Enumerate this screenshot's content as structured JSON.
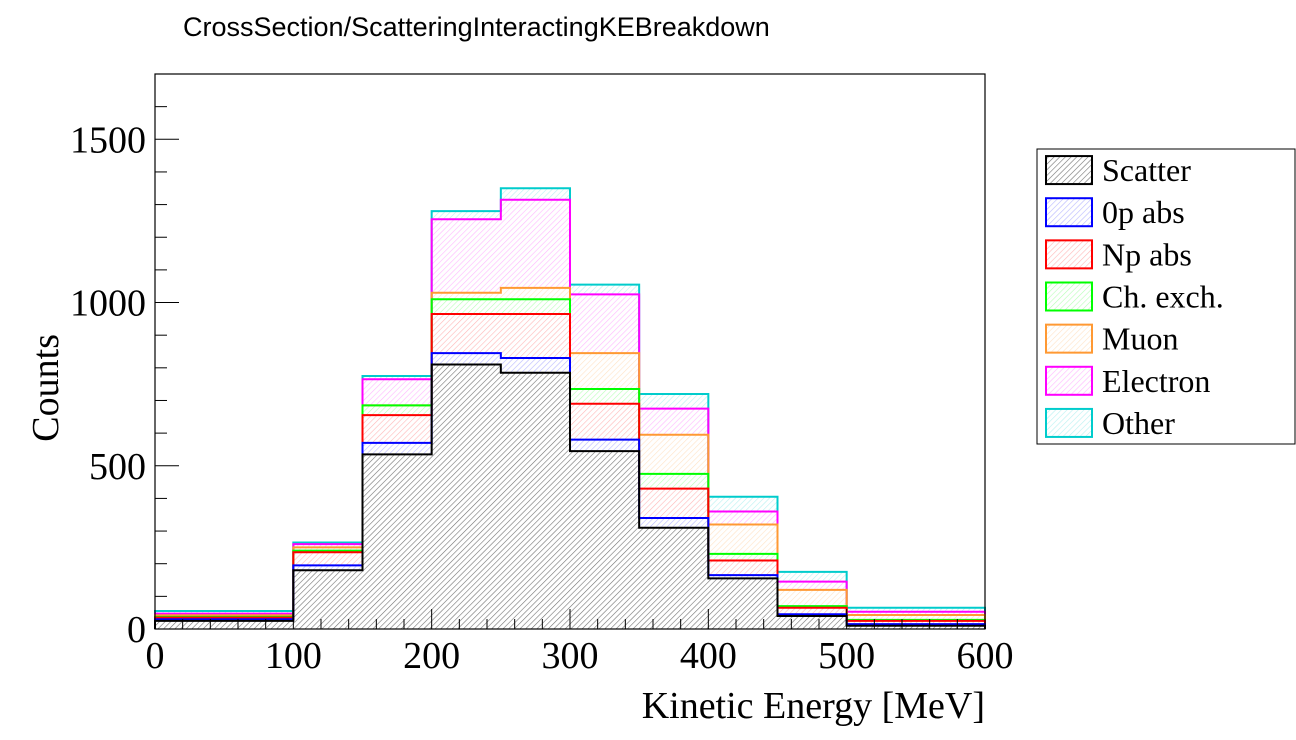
{
  "chart_data": {
    "type": "bar",
    "stacked": true,
    "title": "CrossSection/ScatteringInteractingKEBreakdown",
    "xlabel": "Kinetic Energy [MeV]",
    "ylabel": "Counts",
    "xlim": [
      0,
      600
    ],
    "ylim": [
      0,
      1700
    ],
    "bin_edges": [
      0,
      100,
      150,
      200,
      250,
      300,
      350,
      400,
      450,
      500,
      600
    ],
    "x_ticks": [
      0,
      100,
      200,
      300,
      400,
      500,
      600
    ],
    "x_tick_labels": [
      "0",
      "100",
      "200",
      "300",
      "400",
      "500",
      "600"
    ],
    "y_ticks": [
      0,
      500,
      1000,
      1500
    ],
    "y_tick_labels": [
      "0",
      "500",
      "1000",
      "1500"
    ],
    "legend_position": "right",
    "grid": false,
    "series": [
      {
        "name": "Scatter",
        "color": "#000000",
        "values": [
          25,
          180,
          535,
          810,
          785,
          545,
          310,
          155,
          40,
          10
        ]
      },
      {
        "name": "0p abs",
        "color": "#0000ff",
        "values": [
          5,
          15,
          35,
          35,
          45,
          35,
          30,
          10,
          5,
          5
        ]
      },
      {
        "name": "Np abs",
        "color": "#ff0000",
        "values": [
          5,
          40,
          85,
          120,
          135,
          110,
          90,
          45,
          20,
          10
        ]
      },
      {
        "name": "Ch. exch.",
        "color": "#00ff00",
        "values": [
          2,
          5,
          30,
          45,
          45,
          45,
          45,
          20,
          5,
          3
        ]
      },
      {
        "name": "Muon",
        "color": "#ff9933",
        "values": [
          5,
          10,
          0,
          20,
          35,
          110,
          120,
          90,
          50,
          15
        ]
      },
      {
        "name": "Electron",
        "color": "#ff00ff",
        "values": [
          5,
          10,
          80,
          225,
          270,
          180,
          80,
          40,
          25,
          10
        ]
      },
      {
        "name": "Other",
        "color": "#00cccc",
        "values": [
          8,
          5,
          10,
          25,
          35,
          30,
          45,
          45,
          30,
          12
        ]
      }
    ]
  }
}
